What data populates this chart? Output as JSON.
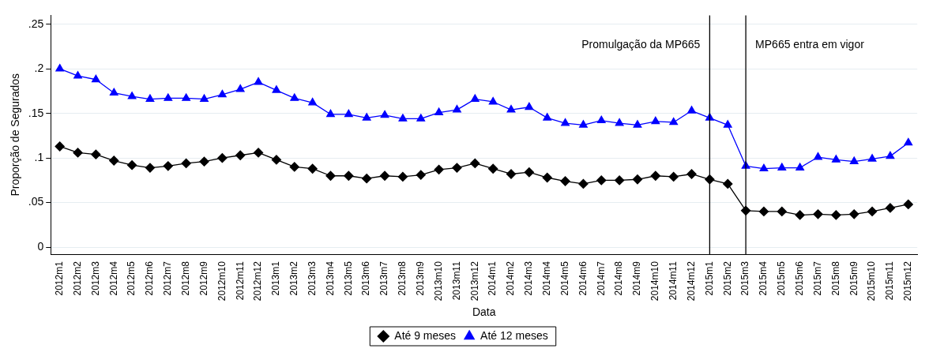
{
  "chart_data": {
    "type": "line",
    "xlabel": "Data",
    "ylabel": "Proporção de Segurados",
    "categories": [
      "2012m1",
      "2012m2",
      "2012m3",
      "2012m4",
      "2012m5",
      "2012m6",
      "2012m7",
      "2012m8",
      "2012m9",
      "2012m10",
      "2012m11",
      "2012m12",
      "2013m1",
      "2013m2",
      "2013m3",
      "2013m4",
      "2013m5",
      "2013m6",
      "2013m7",
      "2013m8",
      "2013m9",
      "2013m10",
      "2013m11",
      "2013m12",
      "2014m1",
      "2014m2",
      "2014m3",
      "2014m4",
      "2014m5",
      "2014m6",
      "2014m7",
      "2014m8",
      "2014m9",
      "2014m10",
      "2014m11",
      "2014m12",
      "2015m1",
      "2015m2",
      "2015m3",
      "2015m4",
      "2015m5",
      "2015m6",
      "2015m7",
      "2015m8",
      "2015m9",
      "2015m10",
      "2015m11",
      "2015m12"
    ],
    "series": [
      {
        "name": "Até 9 meses",
        "color": "#000000",
        "marker": "diamond",
        "values": [
          0.113,
          0.106,
          0.104,
          0.097,
          0.092,
          0.089,
          0.091,
          0.094,
          0.096,
          0.1,
          0.103,
          0.106,
          0.098,
          0.09,
          0.088,
          0.08,
          0.08,
          0.077,
          0.08,
          0.079,
          0.081,
          0.087,
          0.089,
          0.094,
          0.088,
          0.082,
          0.084,
          0.078,
          0.074,
          0.071,
          0.075,
          0.075,
          0.076,
          0.08,
          0.079,
          0.082,
          0.076,
          0.071,
          0.041,
          0.04,
          0.04,
          0.036,
          0.037,
          0.036,
          0.037,
          0.04,
          0.044,
          0.048
        ]
      },
      {
        "name": "Até 12 meses",
        "color": "#0000ff",
        "marker": "triangle",
        "values": [
          0.2,
          0.192,
          0.188,
          0.173,
          0.169,
          0.166,
          0.167,
          0.167,
          0.166,
          0.171,
          0.177,
          0.185,
          0.176,
          0.167,
          0.162,
          0.149,
          0.149,
          0.145,
          0.148,
          0.144,
          0.144,
          0.151,
          0.154,
          0.166,
          0.163,
          0.154,
          0.157,
          0.145,
          0.139,
          0.137,
          0.142,
          0.139,
          0.137,
          0.141,
          0.14,
          0.153,
          0.145,
          0.137,
          0.091,
          0.088,
          0.089,
          0.089,
          0.101,
          0.098,
          0.096,
          0.099,
          0.102,
          0.117
        ]
      }
    ],
    "ylim": [
      -0.008,
      0.26
    ],
    "yticks": [
      {
        "value": 0,
        "label": "0"
      },
      {
        "value": 0.05,
        "label": ".05"
      },
      {
        "value": 0.1,
        "label": ".1"
      },
      {
        "value": 0.15,
        "label": ".15"
      },
      {
        "value": 0.2,
        "label": ".2"
      },
      {
        "value": 0.25,
        "label": ".25"
      }
    ],
    "grid": "y",
    "legend": "bottom",
    "ref_lines": [
      {
        "axis": "x",
        "value": "2015m1",
        "label": "Promulgação da MP665",
        "color": "#000000"
      },
      {
        "axis": "x",
        "value": "2015m3",
        "label": "MP665 entra em vigor",
        "color": "#000000"
      }
    ]
  }
}
